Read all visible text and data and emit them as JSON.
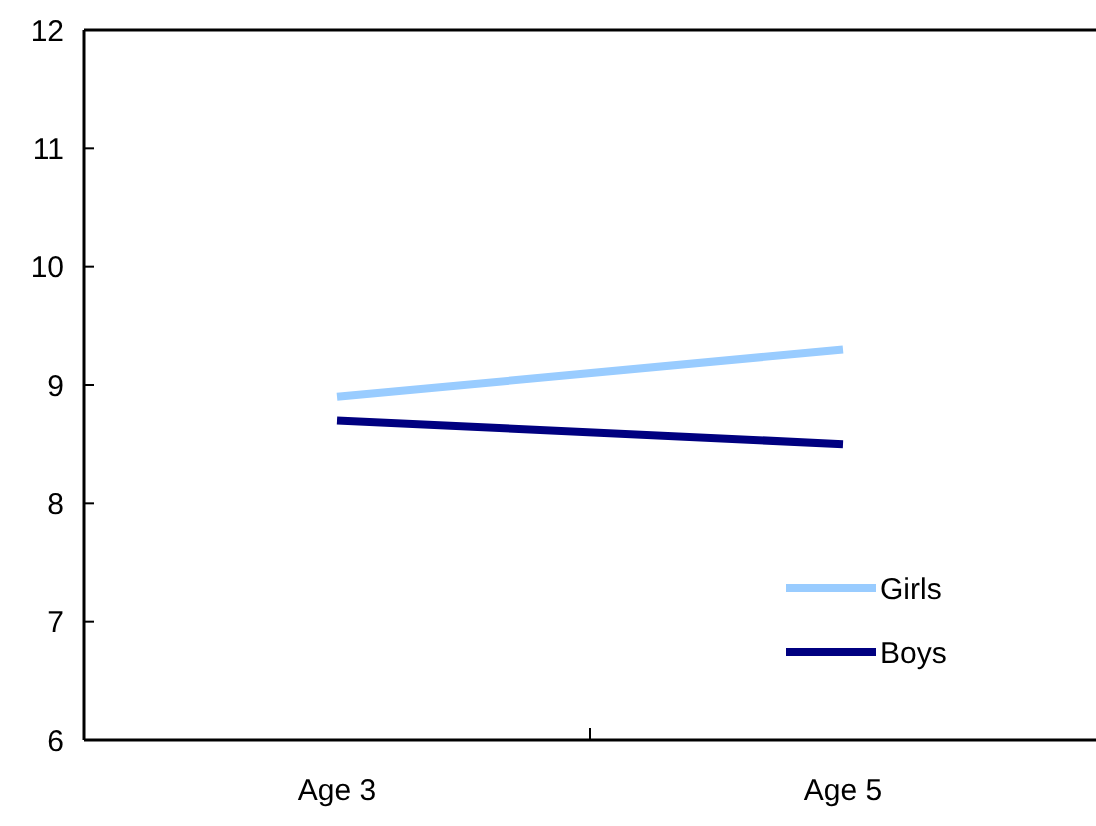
{
  "chart_data": {
    "type": "line",
    "categories": [
      "Age 3",
      "Age 5"
    ],
    "series": [
      {
        "name": "Girls",
        "color": "#99ccff",
        "values": [
          8.9,
          9.3
        ]
      },
      {
        "name": "Boys",
        "color": "#000080",
        "values": [
          8.7,
          8.5
        ]
      }
    ],
    "ylim": [
      6,
      12
    ],
    "yticks": [
      6,
      7,
      8,
      9,
      10,
      11,
      12
    ],
    "grid": false,
    "legend": "bottom right",
    "marker": "none",
    "line_style": "solid"
  }
}
